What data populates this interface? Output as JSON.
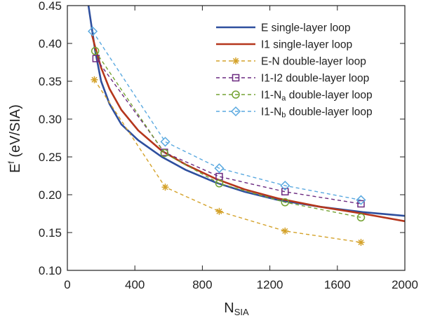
{
  "chart_data": {
    "type": "line",
    "xlim": [
      0,
      2000
    ],
    "ylim": [
      0.1,
      0.45
    ],
    "x_ticks": [
      0,
      400,
      800,
      1200,
      1600,
      2000
    ],
    "y_ticks": [
      0.1,
      0.15,
      0.2,
      0.25,
      0.3,
      0.35,
      0.4,
      0.45
    ],
    "x_tick_labels": [
      "0",
      "400",
      "800",
      "1200",
      "1600",
      "2000"
    ],
    "y_tick_labels": [
      "0.10",
      "0.15",
      "0.20",
      "0.25",
      "0.30",
      "0.35",
      "0.40",
      "0.45"
    ],
    "xlabel": {
      "main": "N",
      "sub": "SIA"
    },
    "ylabel": {
      "main": "E",
      "sup": "f",
      "rest": " (eV/SIA)"
    },
    "grid": false,
    "legend_position": "top-right",
    "series": [
      {
        "name": "E single-layer loop",
        "color": "#2e4f9e",
        "style": "solid",
        "marker": "none",
        "x": [
          125,
          145,
          165,
          200,
          250,
          320,
          420,
          560,
          700,
          880,
          1050,
          1250,
          1500,
          1750,
          2000
        ],
        "y": [
          0.45,
          0.42,
          0.39,
          0.35,
          0.32,
          0.293,
          0.272,
          0.25,
          0.233,
          0.216,
          0.204,
          0.193,
          0.184,
          0.177,
          0.172
        ]
      },
      {
        "name": "I1 single-layer loop",
        "color": "#b5361c",
        "style": "solid",
        "marker": "none",
        "x": [
          145,
          165,
          200,
          250,
          320,
          420,
          560,
          700,
          880,
          1050,
          1250,
          1500,
          1750,
          2000
        ],
        "y": [
          0.412,
          0.395,
          0.368,
          0.34,
          0.312,
          0.285,
          0.258,
          0.24,
          0.221,
          0.207,
          0.195,
          0.184,
          0.175,
          0.165
        ]
      },
      {
        "name": "E-N double-layer loop",
        "color": "#d4a22a",
        "style": "dashed",
        "marker": "asterisk",
        "x": [
          160,
          580,
          900,
          1290,
          1740
        ],
        "y": [
          0.352,
          0.21,
          0.178,
          0.152,
          0.137
        ]
      },
      {
        "name": "I1-I2 double-layer loop",
        "color": "#6b2a80",
        "style": "dashed",
        "marker": "square",
        "x": [
          170,
          575,
          900,
          1290,
          1740
        ],
        "y": [
          0.38,
          0.256,
          0.224,
          0.204,
          0.188
        ]
      },
      {
        "name": "I1-Na double-layer loop",
        "legend_main": "I1-N",
        "legend_sub": "a",
        "legend_tail": " double-layer loop",
        "color": "#74a232",
        "style": "dashed",
        "marker": "circle",
        "x": [
          165,
          575,
          900,
          1290,
          1740
        ],
        "y": [
          0.39,
          0.255,
          0.215,
          0.19,
          0.17
        ]
      },
      {
        "name": "I1-Nb double-layer loop",
        "legend_main": "I1-N",
        "legend_sub": "b",
        "legend_tail": " double-layer loop",
        "color": "#5aa9e0",
        "style": "dashed",
        "marker": "diamond",
        "x": [
          150,
          580,
          900,
          1290,
          1740
        ],
        "y": [
          0.416,
          0.27,
          0.235,
          0.212,
          0.193
        ]
      }
    ]
  }
}
